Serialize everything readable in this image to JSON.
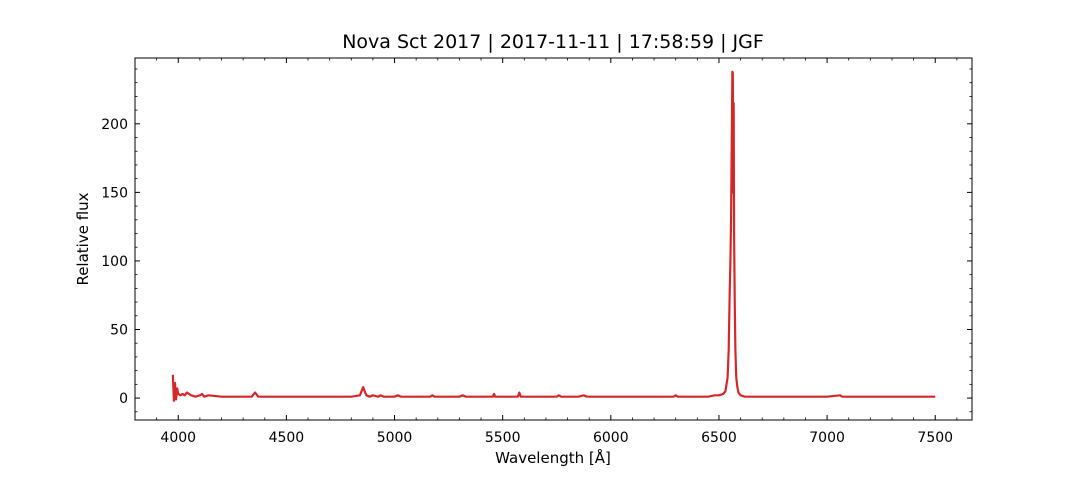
{
  "chart_data": {
    "type": "line",
    "title": "Nova Sct 2017 | 2017-11-11 | 17:58:59 | JGF",
    "xlabel": "Wavelength [Å]",
    "ylabel": "Relative flux",
    "xlim": [
      3800,
      7670
    ],
    "ylim": [
      -16,
      248
    ],
    "xticks": [
      4000,
      4500,
      5000,
      5500,
      6000,
      6500,
      7000,
      7500
    ],
    "xtick_labels": [
      "4000",
      "4500",
      "5000",
      "5500",
      "6000",
      "6500",
      "7000",
      "7500"
    ],
    "yticks": [
      0,
      50,
      100,
      150,
      200
    ],
    "ytick_labels": [
      "0",
      "50",
      "100",
      "150",
      "200"
    ],
    "grid": false,
    "legend": "none",
    "series": [
      {
        "color": "#d62728",
        "x": [
          3975,
          3980,
          3985,
          3990,
          3995,
          4000,
          4010,
          4020,
          4030,
          4040,
          4050,
          4060,
          4080,
          4100,
          4110,
          4120,
          4140,
          4200,
          4300,
          4340,
          4355,
          4370,
          4400,
          4500,
          4600,
          4700,
          4800,
          4840,
          4855,
          4862,
          4870,
          4885,
          4900,
          4925,
          4935,
          4950,
          5000,
          5015,
          5030,
          5100,
          5165,
          5175,
          5185,
          5250,
          5300,
          5315,
          5330,
          5400,
          5455,
          5460,
          5465,
          5500,
          5570,
          5577,
          5584,
          5600,
          5700,
          5750,
          5760,
          5770,
          5850,
          5875,
          5890,
          5950,
          6050,
          6100,
          6200,
          6290,
          6300,
          6310,
          6400,
          6450,
          6480,
          6500,
          6520,
          6530,
          6540,
          6545,
          6550,
          6553,
          6556,
          6558,
          6560,
          6562,
          6564,
          6566,
          6568,
          6570,
          6573,
          6576,
          6580,
          6585,
          6590,
          6600,
          6620,
          6650,
          6700,
          6800,
          6900,
          7000,
          7060,
          7070,
          7080,
          7100,
          7200,
          7300,
          7400,
          7500
        ],
        "y": [
          17,
          -2,
          11,
          -1,
          7,
          3,
          2,
          3,
          2,
          4,
          3,
          2,
          1,
          2,
          3,
          1,
          2,
          1,
          1,
          1,
          4,
          1,
          1,
          1,
          1,
          1,
          1,
          2,
          8,
          5,
          2,
          1,
          2,
          1,
          2,
          1,
          1,
          2,
          1,
          1,
          1,
          2,
          1,
          1,
          1,
          2,
          1,
          1,
          1,
          3,
          1,
          1,
          1,
          4,
          1,
          1,
          1,
          1,
          2,
          1,
          1,
          2,
          1,
          1,
          1,
          1,
          1,
          1,
          2,
          1,
          1,
          1,
          2,
          2,
          3,
          5,
          15,
          35,
          80,
          100,
          130,
          165,
          200,
          238,
          237,
          150,
          215,
          120,
          70,
          35,
          15,
          8,
          4,
          2,
          1,
          1,
          1,
          1,
          1,
          1,
          2,
          1,
          1,
          1,
          1,
          1,
          1,
          1
        ]
      }
    ]
  }
}
